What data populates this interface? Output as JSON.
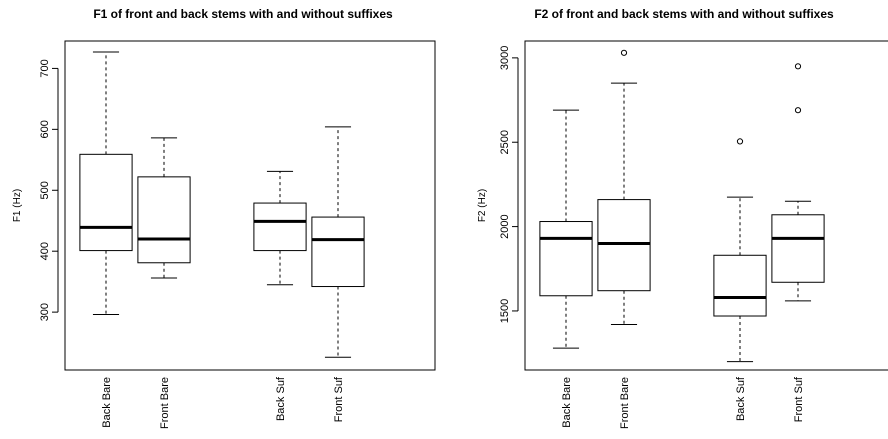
{
  "chart_data": [
    {
      "type": "boxplot",
      "title": "F1 of front and back stems with and without suffixes",
      "xlabel": "",
      "ylabel": "F1 (Hz)",
      "yticks": [
        300,
        400,
        500,
        600,
        700
      ],
      "ylim": [
        205,
        745
      ],
      "grid": false,
      "categories": [
        "Back Bare",
        "Front Bare",
        "Back Suf",
        "Front Suf"
      ],
      "positions": [
        1,
        2,
        4,
        5
      ],
      "boxes": [
        {
          "name": "Back Bare",
          "whisker_low": 296,
          "q1": 401,
          "median": 439,
          "q3": 559,
          "whisker_high": 727,
          "outliers": []
        },
        {
          "name": "Front Bare",
          "whisker_low": 356,
          "q1": 381,
          "median": 420,
          "q3": 522,
          "whisker_high": 586,
          "outliers": []
        },
        {
          "name": "Back Suf",
          "whisker_low": 345,
          "q1": 401,
          "median": 449,
          "q3": 479,
          "whisker_high": 531,
          "outliers": []
        },
        {
          "name": "Front Suf",
          "whisker_low": 226,
          "q1": 342,
          "median": 419,
          "q3": 456,
          "whisker_high": 604,
          "outliers": []
        }
      ]
    },
    {
      "type": "boxplot",
      "title": "F2 of front and back stems with and without suffixes",
      "xlabel": "",
      "ylabel": "F2 (Hz)",
      "yticks": [
        1500,
        2000,
        2500,
        3000
      ],
      "ylim": [
        1150,
        3100
      ],
      "grid": false,
      "categories": [
        "Back Bare",
        "Front Bare",
        "Back Suf",
        "Front Suf"
      ],
      "positions": [
        1,
        2,
        4,
        5
      ],
      "boxes": [
        {
          "name": "Back Bare",
          "whisker_low": 1280,
          "q1": 1590,
          "median": 1930,
          "q3": 2030,
          "whisker_high": 2690,
          "outliers": []
        },
        {
          "name": "Front Bare",
          "whisker_low": 1420,
          "q1": 1620,
          "median": 1900,
          "q3": 2160,
          "whisker_high": 2850,
          "outliers": [
            3030
          ]
        },
        {
          "name": "Back Suf",
          "whisker_low": 1200,
          "q1": 1470,
          "median": 1580,
          "q3": 1830,
          "whisker_high": 2175,
          "outliers": [
            2505
          ]
        },
        {
          "name": "Front Suf",
          "whisker_low": 1560,
          "q1": 1670,
          "median": 1930,
          "q3": 2070,
          "whisker_high": 2150,
          "outliers": [
            2690,
            2950
          ]
        }
      ]
    }
  ]
}
